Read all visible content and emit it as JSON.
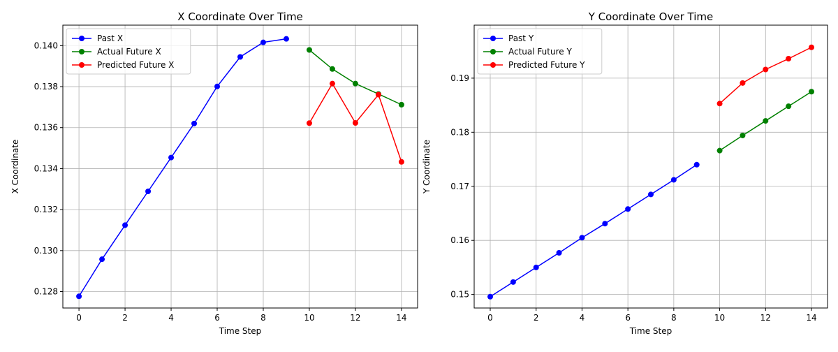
{
  "chart_data": [
    {
      "type": "line",
      "title": "X Coordinate Over Time",
      "xlabel": "Time Step",
      "ylabel": "X Coordinate",
      "xlim": [
        -0.7,
        14.7
      ],
      "ylim": [
        0.1272,
        0.141
      ],
      "xticks": [
        0,
        2,
        4,
        6,
        8,
        10,
        12,
        14
      ],
      "xtick_labels": [
        "0",
        "2",
        "4",
        "6",
        "8",
        "10",
        "12",
        "14"
      ],
      "yticks": [
        0.128,
        0.13,
        0.132,
        0.134,
        0.136,
        0.138,
        0.14
      ],
      "ytick_labels": [
        "0.128",
        "0.130",
        "0.132",
        "0.134",
        "0.136",
        "0.138",
        "0.140"
      ],
      "grid": true,
      "legend_position": "top-left",
      "series": [
        {
          "name": "Past X",
          "color": "#0000ff",
          "x": [
            0,
            1,
            2,
            3,
            4,
            5,
            6,
            7,
            8,
            9
          ],
          "y": [
            0.12777,
            0.12958,
            0.13124,
            0.13289,
            0.13454,
            0.1362,
            0.13801,
            0.13945,
            0.14016,
            0.14033
          ]
        },
        {
          "name": "Actual Future X",
          "color": "#008000",
          "x": [
            10,
            11,
            12,
            13,
            14
          ],
          "y": [
            0.13979,
            0.13886,
            0.13815,
            0.13764,
            0.13712
          ]
        },
        {
          "name": "Predicted Future X",
          "color": "#ff0000",
          "x": [
            10,
            11,
            12,
            13,
            14
          ],
          "y": [
            0.13622,
            0.13815,
            0.13623,
            0.13761,
            0.13433
          ]
        }
      ]
    },
    {
      "type": "line",
      "title": "Y Coordinate Over Time",
      "xlabel": "Time Step",
      "ylabel": "Y Coordinate",
      "xlim": [
        -0.7,
        14.7
      ],
      "ylim": [
        0.1475,
        0.1998
      ],
      "xticks": [
        0,
        2,
        4,
        6,
        8,
        10,
        12,
        14
      ],
      "xtick_labels": [
        "0",
        "2",
        "4",
        "6",
        "8",
        "10",
        "12",
        "14"
      ],
      "yticks": [
        0.15,
        0.16,
        0.17,
        0.18,
        0.19
      ],
      "ytick_labels": [
        "0.15",
        "0.16",
        "0.17",
        "0.18",
        "0.19"
      ],
      "grid": true,
      "legend_position": "top-left",
      "series": [
        {
          "name": "Past Y",
          "color": "#0000ff",
          "x": [
            0,
            1,
            2,
            3,
            4,
            5,
            6,
            7,
            8,
            9
          ],
          "y": [
            0.1496,
            0.1523,
            0.155,
            0.1577,
            0.1605,
            0.1631,
            0.1658,
            0.1685,
            0.1712,
            0.174
          ]
        },
        {
          "name": "Actual Future Y",
          "color": "#008000",
          "x": [
            10,
            11,
            12,
            13,
            14
          ],
          "y": [
            0.1766,
            0.1794,
            0.1821,
            0.1848,
            0.1875
          ]
        },
        {
          "name": "Predicted Future Y",
          "color": "#ff0000",
          "x": [
            10,
            11,
            12,
            13,
            14
          ],
          "y": [
            0.1853,
            0.1891,
            0.1916,
            0.1936,
            0.1957
          ]
        }
      ]
    }
  ]
}
